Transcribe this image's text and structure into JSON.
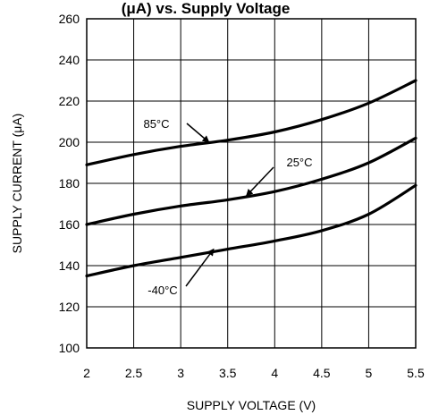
{
  "chart_data": {
    "type": "line",
    "title": "(μA) vs. Supply Voltage",
    "xlabel": "SUPPLY VOLTAGE (V)",
    "ylabel": "SUPPLY CURRENT (μA)",
    "xlim": [
      2,
      5.5
    ],
    "ylim": [
      100,
      260
    ],
    "xticks": [
      2,
      2.5,
      3,
      3.5,
      4,
      4.5,
      5,
      5.5
    ],
    "xtick_labels": [
      "2",
      "2.5",
      "3",
      "3.5",
      "4",
      "4.5",
      "5",
      "5.5"
    ],
    "yticks": [
      100,
      120,
      140,
      160,
      180,
      200,
      220,
      240,
      260
    ],
    "ytick_labels": [
      "100",
      "120",
      "140",
      "160",
      "180",
      "200",
      "220",
      "240",
      "260"
    ],
    "grid": true,
    "series": [
      {
        "name": "85°C",
        "x": [
          2,
          2.5,
          3,
          3.5,
          4,
          4.5,
          5,
          5.5
        ],
        "values": [
          189,
          194,
          198,
          201,
          205,
          211,
          219,
          230
        ]
      },
      {
        "name": "25°C",
        "x": [
          2,
          2.5,
          3,
          3.5,
          4,
          4.5,
          5,
          5.5
        ],
        "values": [
          160,
          165,
          169,
          172,
          176,
          182,
          190,
          202
        ]
      },
      {
        "name": "-40°C",
        "x": [
          2,
          2.5,
          3,
          3.5,
          4,
          4.5,
          5,
          5.5
        ],
        "values": [
          135,
          140,
          144,
          148,
          152,
          157,
          165,
          179
        ]
      }
    ],
    "annotations": [
      {
        "text": "85°C",
        "target_x": 3.3,
        "target_y": 200
      },
      {
        "text": "25°C",
        "target_x": 3.7,
        "target_y": 174
      },
      {
        "text": "-40°C",
        "target_x": 3.35,
        "target_y": 148
      }
    ]
  }
}
